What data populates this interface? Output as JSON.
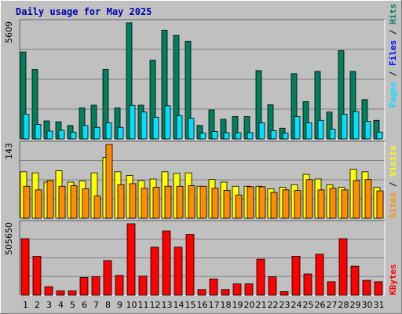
{
  "chart_data": [
    {
      "type": "bar",
      "title": "Daily usage for May 2025",
      "ymax_label": "5609",
      "ylim": [
        0,
        5609
      ],
      "categories": [
        "1",
        "2",
        "3",
        "4",
        "5",
        "6",
        "7",
        "8",
        "9",
        "10",
        "11",
        "12",
        "13",
        "14",
        "15",
        "16",
        "17",
        "18",
        "19",
        "20",
        "21",
        "22",
        "23",
        "24",
        "25",
        "26",
        "27",
        "28",
        "29",
        "30",
        "31"
      ],
      "weekend_days": [
        "3",
        "4",
        "10",
        "11",
        "17",
        "18",
        "24",
        "25",
        "31"
      ],
      "series": [
        {
          "name": "Hits",
          "color": "#00805c",
          "values": [
            4200,
            3350,
            870,
            830,
            650,
            1500,
            1630,
            3350,
            1500,
            5609,
            1630,
            3800,
            5250,
            5000,
            4720,
            650,
            1400,
            950,
            1080,
            1080,
            3300,
            1650,
            520,
            3150,
            1800,
            3260,
            1300,
            4260,
            3260,
            1900,
            900
          ]
        },
        {
          "name": "Files",
          "color": "#00b0f0",
          "values": [
            0,
            0,
            0,
            0,
            0,
            0,
            0,
            0,
            0,
            0,
            0,
            0,
            0,
            0,
            0,
            0,
            0,
            0,
            0,
            0,
            0,
            0,
            0,
            0,
            0,
            0,
            0,
            0,
            0,
            0,
            0
          ]
        },
        {
          "name": "Pages",
          "color": "#00e0ff",
          "values": [
            1200,
            700,
            380,
            420,
            330,
            650,
            560,
            780,
            560,
            1620,
            1300,
            1050,
            1600,
            1130,
            1000,
            280,
            360,
            300,
            300,
            300,
            780,
            400,
            280,
            1080,
            780,
            900,
            470,
            1200,
            1320,
            850,
            330
          ]
        }
      ]
    },
    {
      "type": "bar",
      "ymax_label": "143",
      "ylim": [
        0,
        143
      ],
      "categories": [
        "1",
        "2",
        "3",
        "4",
        "5",
        "6",
        "7",
        "8",
        "9",
        "10",
        "11",
        "12",
        "13",
        "14",
        "15",
        "16",
        "17",
        "18",
        "19",
        "20",
        "21",
        "22",
        "23",
        "24",
        "25",
        "26",
        "27",
        "28",
        "29",
        "30",
        "31"
      ],
      "series": [
        {
          "name": "Visits",
          "color": "#ffff00",
          "values": [
            90,
            88,
            70,
            92,
            70,
            72,
            88,
            118,
            90,
            83,
            73,
            76,
            90,
            87,
            88,
            62,
            75,
            70,
            62,
            62,
            62,
            57,
            60,
            65,
            85,
            76,
            65,
            60,
            95,
            90,
            60
          ]
        },
        {
          "name": "Sites",
          "color": "#ff8c00",
          "values": [
            62,
            55,
            73,
            62,
            63,
            57,
            43,
            143,
            65,
            67,
            58,
            60,
            62,
            62,
            63,
            62,
            58,
            54,
            45,
            61,
            61,
            50,
            55,
            54,
            75,
            55,
            58,
            55,
            73,
            75,
            53
          ]
        }
      ]
    },
    {
      "type": "bar",
      "ymax_label": "505650",
      "ylim": [
        0,
        505650
      ],
      "categories": [
        "1",
        "2",
        "3",
        "4",
        "5",
        "6",
        "7",
        "8",
        "9",
        "10",
        "11",
        "12",
        "13",
        "14",
        "15",
        "16",
        "17",
        "18",
        "19",
        "20",
        "21",
        "22",
        "23",
        "24",
        "25",
        "26",
        "27",
        "28",
        "29",
        "30",
        "31"
      ],
      "series": [
        {
          "name": "KBytes",
          "color": "#ff0000",
          "values": [
            400000,
            275000,
            60000,
            30000,
            30000,
            125000,
            130000,
            245000,
            140000,
            505650,
            135000,
            340000,
            455000,
            340000,
            430000,
            40000,
            115000,
            40000,
            80000,
            80000,
            255000,
            130000,
            25000,
            275000,
            150000,
            290000,
            95000,
            400000,
            205000,
            105000,
            95000
          ]
        }
      ]
    }
  ]
}
